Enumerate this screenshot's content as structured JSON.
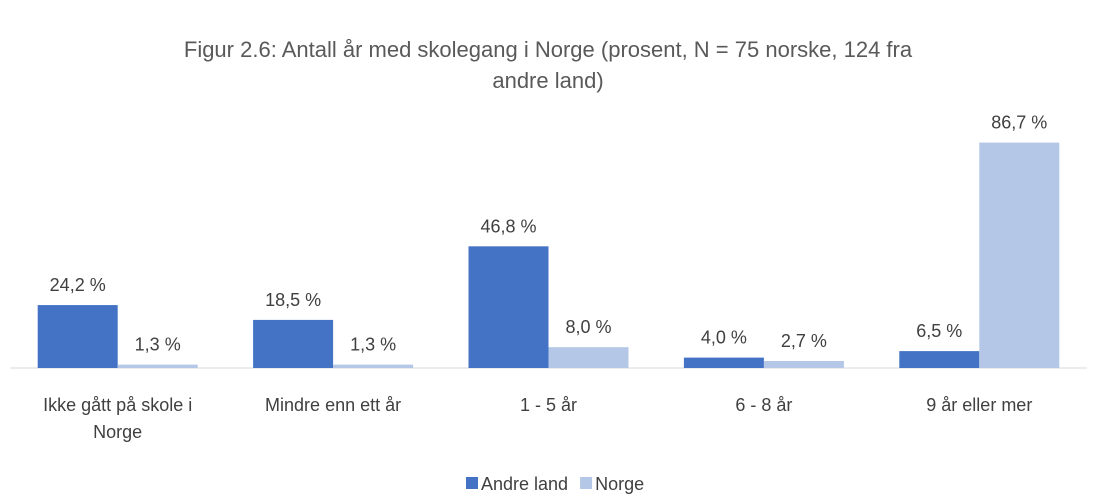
{
  "chart_data": {
    "type": "bar",
    "title": "Figur 2.6: Antall år med skolegang i Norge (prosent, N = 75 norske, 124 fra andre land)",
    "categories": [
      "Ikke gått på skole i Norge",
      "Mindre enn ett år",
      "1 - 5 år",
      "6 - 8 år",
      "9 år eller mer"
    ],
    "series": [
      {
        "name": "Andre land",
        "color": "#4472c4",
        "values": [
          24.2,
          18.5,
          46.8,
          4.0,
          6.5
        ],
        "value_labels": [
          "24,2 %",
          "18,5 %",
          "46,8 %",
          "4,0 %",
          "6,5 %"
        ]
      },
      {
        "name": "Norge",
        "color": "#b4c7e7",
        "values": [
          1.3,
          1.3,
          8.0,
          2.7,
          86.7
        ],
        "value_labels": [
          "1,3 %",
          "1,3 %",
          "8,0 %",
          "2,7 %",
          "86,7 %"
        ]
      }
    ],
    "legend": "bottom"
  }
}
